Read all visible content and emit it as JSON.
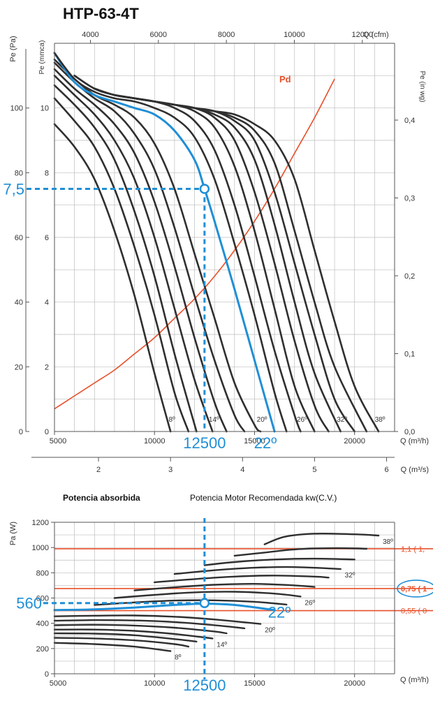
{
  "model": "HTP-63-4T",
  "colors": {
    "curve": "#2f2f2f",
    "grid": "#bdbdbd",
    "highlight": "#1f8fd6",
    "pd": "#e8502a"
  },
  "chart_data": [
    {
      "type": "line",
      "title": "",
      "x_axis": {
        "label": "Q (m³/h)",
        "range": [
          5000,
          22000
        ],
        "ticks": [
          5000,
          10000,
          15000,
          20000
        ]
      },
      "x_axis_m3s": {
        "label": "Q (m³/s)",
        "ticks": [
          2,
          3,
          4,
          5,
          6
        ]
      },
      "x_axis_cfm": {
        "label": "Q (cfm)",
        "ticks": [
          4000,
          6000,
          8000,
          10000,
          12000
        ]
      },
      "y_axis_pa": {
        "label": "Pe (Pa)",
        "range": [
          0,
          120
        ],
        "ticks": [
          0,
          20,
          40,
          60,
          80,
          100
        ]
      },
      "y_axis_mmca": {
        "label": "Pe (mmca)",
        "ticks": [
          0,
          2,
          4,
          6,
          8,
          10
        ]
      },
      "y_axis_inwg": {
        "label": "Pe (in wg)",
        "ticks": [
          "0,0",
          "0,1",
          "0,2",
          "0,3",
          "0,4"
        ]
      },
      "grid": true,
      "angles": [
        8,
        10,
        12,
        14,
        16,
        18,
        20,
        22,
        24,
        26,
        28,
        30,
        32,
        34,
        36,
        38
      ],
      "angle_labels": [
        "8º",
        "14º",
        "20º",
        "26º",
        "32º",
        "38º"
      ],
      "label_angles": [
        8,
        14,
        20,
        26,
        32,
        38
      ],
      "series": [
        {
          "angle": 8,
          "q": [
            5000,
            6000,
            7000,
            8000,
            9000,
            10000,
            10800
          ],
          "pe": [
            95,
            88,
            78,
            62,
            42,
            18,
            0
          ]
        },
        {
          "angle": 10,
          "q": [
            5000,
            6000,
            7000,
            8000,
            9000,
            10000,
            11000,
            11700
          ],
          "pe": [
            103,
            96,
            88,
            75,
            57,
            36,
            12,
            0
          ]
        },
        {
          "angle": 12,
          "q": [
            5000,
            6000,
            7000,
            8000,
            9000,
            10000,
            11000,
            12100
          ],
          "pe": [
            107,
            101,
            94,
            84,
            68,
            48,
            24,
            0
          ]
        },
        {
          "angle": 14,
          "q": [
            5000,
            6000,
            7000,
            8000,
            9000,
            10000,
            11000,
            12000,
            12900
          ],
          "pe": [
            110,
            104,
            98,
            90,
            78,
            60,
            38,
            16,
            0
          ]
        },
        {
          "angle": 16,
          "q": [
            5000,
            6000,
            7000,
            8000,
            9000,
            10000,
            11000,
            12000,
            13000,
            13600
          ],
          "pe": [
            112,
            106,
            101,
            95,
            86,
            71,
            51,
            29,
            9,
            0
          ]
        },
        {
          "angle": 18,
          "q": [
            5000,
            6000,
            7000,
            8000,
            9000,
            10000,
            11000,
            12000,
            13000,
            14000,
            14500
          ],
          "pe": [
            114,
            108,
            103,
            99,
            92,
            81,
            63,
            42,
            22,
            5,
            0
          ]
        },
        {
          "angle": 20,
          "q": [
            5000,
            6000,
            7000,
            8000,
            9000,
            10000,
            11000,
            12000,
            13000,
            14000,
            15000,
            15300
          ],
          "pe": [
            115,
            109,
            104,
            101,
            97,
            89,
            75,
            55,
            35,
            15,
            2,
            0
          ]
        },
        {
          "angle": 22,
          "q": [
            5000,
            6000,
            7000,
            8000,
            9000,
            10000,
            11000,
            12000,
            12500,
            13000,
            14000,
            15000,
            16000
          ],
          "pe": [
            117,
            108,
            104,
            102,
            100,
            98,
            93,
            84,
            75,
            65,
            44,
            22,
            0
          ]
        },
        {
          "angle": 24,
          "q": [
            5000,
            6000,
            7000,
            8000,
            9000,
            10000,
            11000,
            12000,
            13000,
            14000,
            15000,
            16000,
            16600
          ],
          "pe": [
            117,
            109,
            105,
            103,
            102,
            100,
            97,
            91,
            78,
            58,
            36,
            12,
            0
          ]
        },
        {
          "angle": 26,
          "q": [
            6000,
            7000,
            8000,
            9000,
            10000,
            11000,
            12000,
            13000,
            14000,
            15000,
            16000,
            17000,
            17300
          ],
          "pe": [
            110,
            106,
            104,
            103,
            102,
            100,
            96,
            87,
            70,
            48,
            25,
            5,
            0
          ]
        },
        {
          "angle": 28,
          "q": [
            6000,
            7000,
            8000,
            9000,
            10000,
            11000,
            12000,
            13000,
            14000,
            15000,
            16000,
            17000,
            18000
          ],
          "pe": [
            110,
            106,
            104,
            103,
            102,
            101,
            99,
            94,
            82,
            62,
            38,
            14,
            0
          ]
        },
        {
          "angle": 30,
          "q": [
            7000,
            8000,
            9000,
            10000,
            11000,
            12000,
            13000,
            14000,
            15000,
            16000,
            17000,
            18000,
            18700
          ],
          "pe": [
            106,
            104,
            103,
            102,
            101,
            100,
            97,
            90,
            74,
            52,
            28,
            8,
            0
          ]
        },
        {
          "angle": 32,
          "q": [
            7000,
            8000,
            9000,
            10000,
            11000,
            12000,
            13000,
            14000,
            15000,
            16000,
            17000,
            18000,
            19300
          ],
          "pe": [
            106,
            104,
            103,
            102,
            101,
            100,
            98,
            94,
            84,
            64,
            40,
            18,
            0
          ]
        },
        {
          "angle": 34,
          "q": [
            8000,
            9000,
            10000,
            11000,
            12000,
            13000,
            14000,
            15000,
            16000,
            17000,
            18000,
            19000,
            20000
          ],
          "pe": [
            104,
            103,
            102,
            101,
            100,
            99,
            96,
            90,
            74,
            52,
            30,
            10,
            0
          ]
        },
        {
          "angle": 36,
          "q": [
            8000,
            9000,
            10000,
            11000,
            12000,
            13000,
            14000,
            15000,
            16000,
            17000,
            18000,
            19000,
            20600
          ],
          "pe": [
            104,
            103,
            102,
            101,
            100,
            99,
            97,
            93,
            83,
            62,
            40,
            20,
            0
          ]
        },
        {
          "angle": 38,
          "q": [
            9000,
            10000,
            11000,
            12000,
            13000,
            14000,
            15000,
            16000,
            17000,
            18000,
            19000,
            20000,
            21200
          ],
          "pe": [
            103,
            102,
            101,
            100,
            99,
            98,
            95,
            90,
            78,
            56,
            34,
            14,
            0
          ]
        }
      ],
      "pd_curve": {
        "label": "Pd",
        "q": [
          5000,
          6000,
          7000,
          8000,
          9000,
          10000,
          11000,
          12000,
          13000,
          14000,
          15000,
          16000,
          17000,
          18000,
          19000,
          20000
        ],
        "pe": [
          7,
          11,
          15,
          19,
          24,
          29,
          35,
          41,
          48,
          56,
          65,
          75,
          86,
          97,
          109,
          121
        ]
      },
      "operating_point": {
        "q": 12500,
        "pe": 75,
        "q_label": "12500",
        "pe_label": "7,5",
        "angle_label": "22º"
      }
    },
    {
      "type": "line",
      "title": "Potencia absorbida",
      "subtitle": "Potencia Motor Recomendada kw(C.V.)",
      "x_axis": {
        "label": "Q (m³/h)",
        "range": [
          5000,
          22000
        ],
        "ticks": [
          5000,
          10000,
          15000,
          20000
        ]
      },
      "y_axis": {
        "label": "Pa (W)",
        "range": [
          0,
          1200
        ],
        "ticks": [
          0,
          200,
          400,
          600,
          800,
          1000,
          1200
        ]
      },
      "grid": true,
      "angle_labels": [
        "8º",
        "14º",
        "20º",
        "26º",
        "32º",
        "38º"
      ],
      "label_angles": [
        8,
        14,
        20,
        26,
        32,
        38
      ],
      "series": [
        {
          "angle": 8,
          "q": [
            5000,
            7000,
            9000,
            10800
          ],
          "pa": [
            245,
            235,
            215,
            180
          ]
        },
        {
          "angle": 10,
          "q": [
            5000,
            7000,
            9000,
            11000,
            11700
          ],
          "pa": [
            285,
            280,
            265,
            235,
            215
          ]
        },
        {
          "angle": 12,
          "q": [
            5000,
            7000,
            9000,
            11000,
            12100
          ],
          "pa": [
            320,
            318,
            305,
            275,
            255
          ]
        },
        {
          "angle": 14,
          "q": [
            5000,
            7000,
            9000,
            11000,
            12900
          ],
          "pa": [
            350,
            350,
            340,
            315,
            280
          ]
        },
        {
          "angle": 16,
          "q": [
            5000,
            7000,
            9000,
            11000,
            13000,
            13600
          ],
          "pa": [
            385,
            388,
            382,
            365,
            335,
            320
          ]
        },
        {
          "angle": 18,
          "q": [
            5000,
            7000,
            9000,
            11000,
            13000,
            14500
          ],
          "pa": [
            420,
            425,
            422,
            410,
            385,
            360
          ]
        },
        {
          "angle": 20,
          "q": [
            5000,
            7000,
            9000,
            11000,
            13000,
            15300
          ],
          "pa": [
            455,
            460,
            462,
            452,
            430,
            395
          ]
        },
        {
          "angle": 22,
          "q": [
            5000,
            7000,
            9000,
            11000,
            12500,
            14000,
            16000
          ],
          "pa": [
            505,
            510,
            525,
            545,
            555,
            545,
            505
          ]
        },
        {
          "angle": 24,
          "q": [
            7000,
            9000,
            11000,
            13000,
            15000,
            16600
          ],
          "pa": [
            545,
            565,
            580,
            582,
            570,
            548
          ]
        },
        {
          "angle": 26,
          "q": [
            8000,
            10000,
            12000,
            14000,
            16000,
            17300
          ],
          "pa": [
            600,
            625,
            645,
            650,
            635,
            612
          ]
        },
        {
          "angle": 28,
          "q": [
            9000,
            11000,
            13000,
            15000,
            17000,
            18000
          ],
          "pa": [
            660,
            685,
            705,
            712,
            700,
            688
          ]
        },
        {
          "angle": 30,
          "q": [
            10000,
            12000,
            14000,
            16000,
            18000,
            18700
          ],
          "pa": [
            725,
            750,
            770,
            778,
            770,
            762
          ]
        },
        {
          "angle": 32,
          "q": [
            11000,
            13000,
            15000,
            17000,
            19300
          ],
          "pa": [
            790,
            820,
            840,
            845,
            830
          ]
        },
        {
          "angle": 34,
          "q": [
            12500,
            14000,
            16000,
            18000,
            20000
          ],
          "pa": [
            860,
            885,
            905,
            912,
            905
          ]
        },
        {
          "angle": 36,
          "q": [
            14000,
            15500,
            17000,
            19000,
            20600
          ],
          "pa": [
            935,
            960,
            985,
            995,
            990
          ]
        },
        {
          "angle": 38,
          "q": [
            15500,
            16500,
            18000,
            20000,
            21200
          ],
          "pa": [
            1025,
            1085,
            1110,
            1105,
            1095
          ]
        }
      ],
      "motor_lines": [
        {
          "pa": 990,
          "label": "1,1 ( 1,"
        },
        {
          "pa": 675,
          "label": "0,75 ( 1"
        },
        {
          "pa": 500,
          "label": "0,55 ( 0"
        }
      ],
      "operating_point": {
        "q": 12500,
        "pa": 560,
        "q_label": "12500",
        "pa_label": "560",
        "angle_label": "22º"
      }
    }
  ]
}
